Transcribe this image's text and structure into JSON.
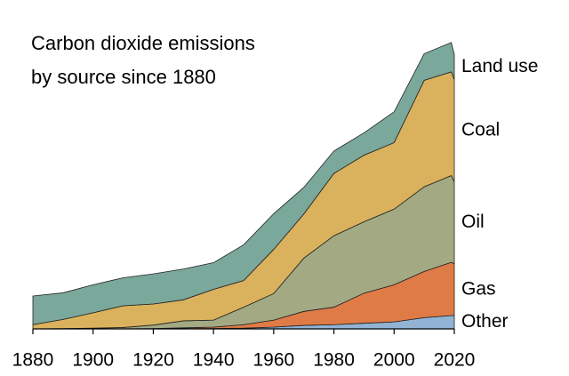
{
  "chart_data": {
    "type": "stacked_area",
    "title": [
      "Carbon dioxide emissions",
      "by source since 1880"
    ],
    "x": [
      1880,
      1890,
      1900,
      1910,
      1920,
      1930,
      1940,
      1950,
      1960,
      1970,
      1980,
      1990,
      2000,
      2010,
      2019,
      2020
    ],
    "xlim": [
      1880,
      2020
    ],
    "xticks": [
      1880,
      1900,
      1920,
      1940,
      1960,
      1980,
      2000,
      2020
    ],
    "ylim": [
      0,
      41
    ],
    "series": [
      {
        "name": "Other",
        "color": "#92b3d4",
        "values": [
          0,
          0,
          0,
          0,
          0,
          0.05,
          0.05,
          0.1,
          0.25,
          0.5,
          0.6,
          0.8,
          1.0,
          1.6,
          1.9,
          1.9
        ]
      },
      {
        "name": "Gas",
        "color": "#df7b47",
        "values": [
          0,
          0,
          0,
          0,
          0.05,
          0.1,
          0.2,
          0.5,
          1.0,
          2.0,
          2.5,
          4.3,
          5.3,
          6.6,
          7.6,
          7.4
        ]
      },
      {
        "name": "Oil",
        "color": "#a3aa83",
        "values": [
          0,
          0.05,
          0.1,
          0.2,
          0.5,
          1.0,
          1.0,
          2.5,
          3.8,
          7.6,
          10.2,
          10.2,
          10.8,
          12.1,
          12.4,
          11.7
        ]
      },
      {
        "name": "Coal",
        "color": "#dab25d",
        "values": [
          0.6,
          1.3,
          2.2,
          3.1,
          3.0,
          3.0,
          4.4,
          3.8,
          6.3,
          6.3,
          8.9,
          9.5,
          9.5,
          15.2,
          14.8,
          14.6
        ]
      },
      {
        "name": "Land use",
        "color": "#7aa89b",
        "values": [
          4.1,
          3.8,
          4.0,
          4.0,
          4.3,
          4.4,
          3.8,
          5.1,
          5.1,
          3.8,
          3.2,
          3.2,
          4.4,
          3.8,
          4.2,
          3.6
        ]
      }
    ]
  }
}
